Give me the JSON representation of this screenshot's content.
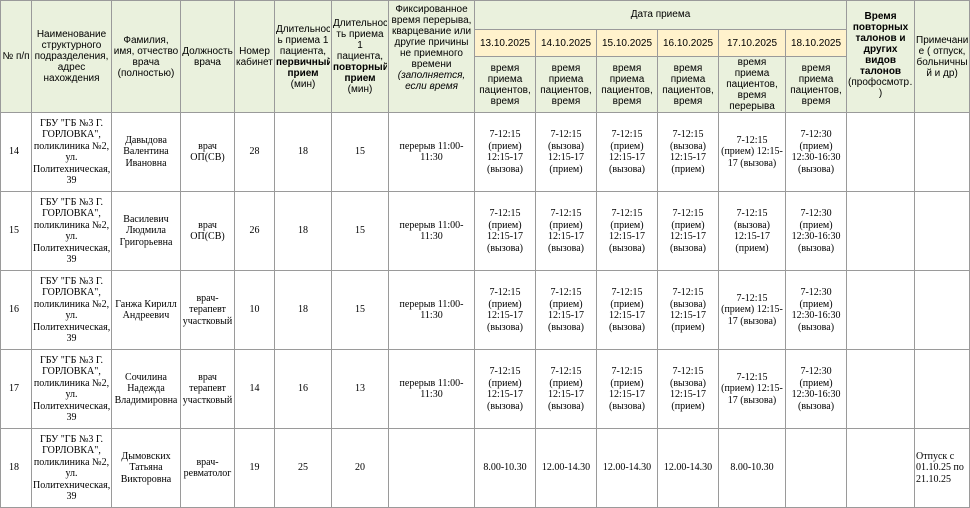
{
  "header": {
    "num": "№ п/п",
    "unit": "Наименование структурного подразделения, адрес нахождения",
    "fio": "Фамилия, имя, отчество врача (полностью)",
    "position": "Должность врача",
    "cabinet": "Номер кабинета",
    "dur_first_a": "Длительност ь приема 1 пациента,",
    "dur_first_b": "первичный прием",
    "dur_first_c": "(мин)",
    "dur_repeat_a": "Длительнос ть приема 1 пациента,",
    "dur_repeat_b": "повторный прием",
    "dur_repeat_c": "(мин)",
    "break_a": "Фиксированное время перерыва, кварцевание или другие причины не приемного времени",
    "break_b": "(заполняется, если время",
    "date_group": "Дата приема",
    "dates": [
      "13.10.2025",
      "14.10.2025",
      "15.10.2025",
      "16.10.2025",
      "17.10.2025",
      "18.10.2025"
    ],
    "date_sub": [
      "время приема пациентов, время",
      "время приема пациентов, время",
      "время приема пациентов, время",
      "время приема пациентов, время",
      "время приема пациентов, время перерыва",
      "время приема пациентов, время"
    ],
    "repeat_talon": "Время повторных талонов и других видов талонов",
    "repeat_talon_b": "(профосмотр…",
    "repeat_talon_c": ")",
    "notes": "Примечани е ( отпуск, больничны й и др)"
  },
  "rows": [
    {
      "num": "14",
      "unit": "ГБУ \"ГБ №3 Г. ГОРЛОВКА\", поликлиника №2, ул. Политехническая, 39",
      "fio": "Давыдова Валентина Ивановна",
      "position": "врач ОП(СВ)",
      "cabinet": "28",
      "first": "18",
      "repeat": "15",
      "break": "перерыв 11:00-11:30",
      "days": [
        "7-12:15 (прием) 12:15-17 (вызова)",
        "7-12:15 (вызова) 12:15-17 (прием)",
        "7-12:15 (прием) 12:15-17 (вызова)",
        "7-12:15 (вызова) 12:15-17 (прием)",
        "7-12:15 (прием) 12:15-17 (вызова)",
        "7-12:30 (прием) 12:30-16:30 (вызова)"
      ],
      "talon": "",
      "note": ""
    },
    {
      "num": "15",
      "unit": "ГБУ \"ГБ №3 Г. ГОРЛОВКА\", поликлиника №2, ул. Политехническая, 39",
      "fio": "Василевич Людмила Григорьевна",
      "position": "врач ОП(СВ)",
      "cabinet": "26",
      "first": "18",
      "repeat": "15",
      "break": "перерыв 11:00-11:30",
      "days": [
        "7-12:15 (прием) 12:15-17 (вызова)",
        "7-12:15 (прием) 12:15-17 (вызова)",
        "7-12:15 (прием) 12:15-17 (вызова)",
        "7-12:15 (прием) 12:15-17 (вызова)",
        "7-12:15 (вызова) 12:15-17 (прием)",
        "7-12:30 (прием) 12:30-16:30 (вызова)"
      ],
      "talon": "",
      "note": ""
    },
    {
      "num": "16",
      "unit": "ГБУ \"ГБ №3 Г. ГОРЛОВКА\", поликлиника №2, ул. Политехническая, 39",
      "fio": "Ганжа Кирилл Андреевич",
      "position": "врач-терапевт участковый",
      "cabinet": "10",
      "first": "18",
      "repeat": "15",
      "break": "перерыв 11:00-11:30",
      "days": [
        "7-12:15 (прием) 12:15-17 (вызова)",
        "7-12:15 (прием) 12:15-17 (вызова)",
        "7-12:15 (прием) 12:15-17 (вызова)",
        "7-12:15 (вызова) 12:15-17 (прием)",
        "7-12:15 (прием) 12:15-17 (вызова)",
        "7-12:30 (прием) 12:30-16:30 (вызова)"
      ],
      "talon": "",
      "note": ""
    },
    {
      "num": "17",
      "unit": "ГБУ \"ГБ №3 Г. ГОРЛОВКА\", поликлиника №2, ул. Политехническая, 39",
      "fio": "Сочилина Надежда Владимировна",
      "position": "врач терапевт участковый",
      "cabinet": "14",
      "first": "16",
      "repeat": "13",
      "break": "перерыв 11:00-11:30",
      "days": [
        "7-12:15 (прием) 12:15-17 (вызова)",
        "7-12:15 (прием) 12:15-17 (вызова)",
        "7-12:15 (прием) 12:15-17 (вызова)",
        "7-12:15 (вызова) 12:15-17 (прием)",
        "7-12:15 (прием) 12:15-17 (вызова)",
        "7-12:30 (прием) 12:30-16:30 (вызова)"
      ],
      "talon": "",
      "note": ""
    },
    {
      "num": "18",
      "unit": "ГБУ \"ГБ №3 Г. ГОРЛОВКА\", поликлиника №2, ул. Политехническая, 39",
      "fio": "Дымовских Татьяна Викторовна",
      "position": "врач-ревматолог",
      "cabinet": "19",
      "first": "25",
      "repeat": "20",
      "break": "",
      "days": [
        "8.00-10.30",
        "12.00-14.30",
        "12.00-14.30",
        "12.00-14.30",
        "8.00-10.30",
        ""
      ],
      "talon": "",
      "note": "Отпуск с 01.10.25 по 21.10.25"
    }
  ]
}
